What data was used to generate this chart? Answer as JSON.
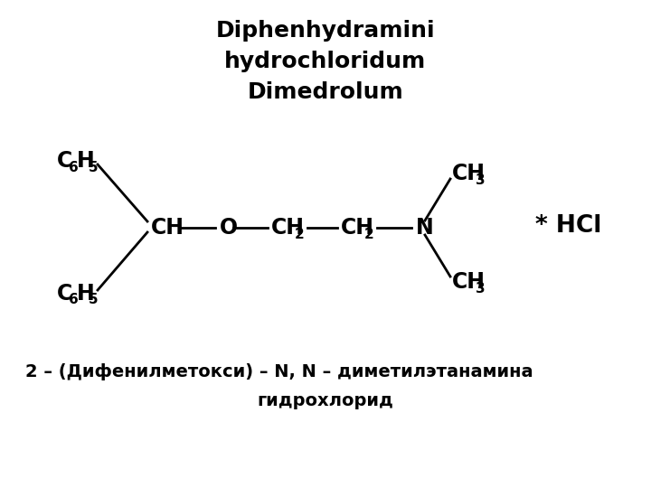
{
  "title_lines": [
    "Diphenhydramini",
    "hydrochloridum",
    "Dimedrolum"
  ],
  "title_fontsize": 18,
  "title_family": "DejaVu Sans",
  "background_color": "#ffffff",
  "subtitle_line1": "2 – (Дифенилметокси) – N, N – диметилэтанамина",
  "subtitle_line2": "гидрохлорид",
  "subtitle_fontsize": 14,
  "formula_fontsize": 17,
  "sub_fontsize": 11,
  "bond_color": "#000000",
  "text_color": "#000000",
  "lw": 2.0
}
